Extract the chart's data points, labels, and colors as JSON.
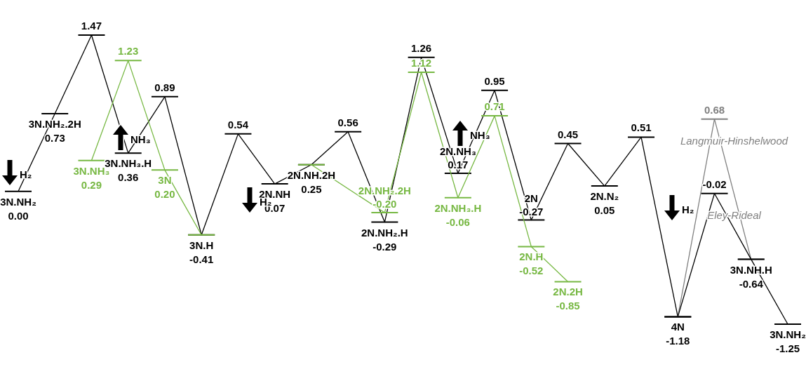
{
  "chart_data": {
    "type": "line",
    "categories": [
      null,
      null,
      null,
      null,
      null,
      null,
      null,
      null,
      null,
      null,
      null,
      null,
      null,
      null,
      null,
      null,
      null,
      null,
      null,
      null,
      null,
      null
    ],
    "series": [
      {
        "color": "#000000",
        "values": [
          0.0,
          0.73,
          1.47,
          0.36,
          0.89,
          -0.41,
          0.54,
          0.07,
          0.25,
          0.56,
          -0.29,
          1.26,
          0.17,
          0.95,
          -0.27,
          0.45,
          0.05,
          0.51,
          -1.18,
          null,
          null,
          null
        ],
        "value_labels": [
          "0.00",
          "0.73",
          "1.47",
          "0.36",
          "0.89",
          "-0.41",
          "0.54",
          "0.07",
          "0.25",
          "0.56",
          "-0.29",
          "1.26",
          "0.17",
          "0.95",
          "-0.27",
          "0.45",
          "0.05",
          "0.51",
          "-1.18",
          null,
          null,
          null
        ]
      },
      {
        "color": "#77b843",
        "values": [
          null,
          null,
          0.29,
          1.23,
          0.2,
          -0.41,
          null,
          null,
          null,
          null,
          null,
          null,
          null,
          null,
          null,
          null,
          null,
          null,
          null,
          null,
          null,
          null
        ],
        "value_labels": [
          null,
          null,
          "0.29",
          "1.23",
          "0.20",
          null,
          null,
          null,
          null,
          null,
          null,
          null,
          null,
          null,
          null,
          null,
          null,
          null,
          null,
          null,
          null,
          null
        ]
      },
      {
        "color": "#77b843",
        "values": [
          null,
          null,
          null,
          null,
          null,
          null,
          null,
          null,
          0.25,
          null,
          -0.2,
          1.12,
          -0.06,
          0.71,
          -0.52,
          -0.85,
          null,
          null,
          null,
          null,
          null,
          null
        ],
        "value_labels": [
          null,
          null,
          null,
          null,
          null,
          null,
          null,
          null,
          null,
          null,
          "-0.20",
          "1.12",
          "-0.06",
          "0.71",
          "-0.52",
          "-0.85",
          null,
          null,
          null,
          null,
          null,
          null
        ]
      },
      {
        "name": "Langmuir-Hinshelwood",
        "color": "#808080",
        "values": [
          null,
          null,
          null,
          null,
          null,
          null,
          null,
          null,
          null,
          null,
          null,
          null,
          null,
          null,
          null,
          null,
          null,
          null,
          -1.18,
          0.68,
          -0.64,
          null
        ],
        "value_labels": [
          null,
          null,
          null,
          null,
          null,
          null,
          null,
          null,
          null,
          null,
          null,
          null,
          null,
          null,
          null,
          null,
          null,
          null,
          null,
          "0.68",
          null,
          null
        ]
      },
      {
        "name": "Eley-Rideal",
        "color": "#000000",
        "values": [
          null,
          null,
          null,
          null,
          null,
          null,
          null,
          null,
          null,
          null,
          null,
          null,
          null,
          null,
          null,
          null,
          null,
          null,
          -1.18,
          -0.02,
          -0.64,
          -1.25
        ],
        "value_labels": [
          null,
          null,
          null,
          null,
          null,
          null,
          null,
          null,
          null,
          null,
          null,
          null,
          null,
          null,
          null,
          null,
          null,
          null,
          null,
          "-0.02",
          "-0.64",
          "-1.25"
        ]
      }
    ],
    "annotations": [
      {
        "text": "3N.NH₂",
        "y": 0.0
      },
      {
        "text": "3N.NH₂.2H",
        "y": 0.73
      },
      {
        "text": "3N.NH₃.H",
        "y": 0.36
      },
      {
        "text": "3N.NH₃",
        "y": 0.29
      },
      {
        "text": "3N",
        "y": 0.2
      },
      {
        "text": "3N.H",
        "y": -0.41
      },
      {
        "text": "2N.NH",
        "y": 0.07
      },
      {
        "text": "2N.NH.2H",
        "y": 0.25
      },
      {
        "text": "2N.NH₂.H",
        "y": -0.29
      },
      {
        "text": "2N.NH₂.2H",
        "y": -0.2
      },
      {
        "text": "2N.NH₃",
        "y": 0.17
      },
      {
        "text": "2N.NH₃.H",
        "y": -0.06
      },
      {
        "text": "2N",
        "y": -0.27
      },
      {
        "text": "2N.H",
        "y": -0.52
      },
      {
        "text": "2N.2H",
        "y": -0.85
      },
      {
        "text": "2N.N₂",
        "y": 0.05
      },
      {
        "text": "4N",
        "y": -1.18
      },
      {
        "text": "3N.NH.H",
        "y": -0.64
      },
      {
        "text": "3N.NH₂",
        "y": -1.25
      },
      "H₂",
      "NH₃",
      "H₂",
      "NH₃",
      "H₂"
    ]
  }
}
